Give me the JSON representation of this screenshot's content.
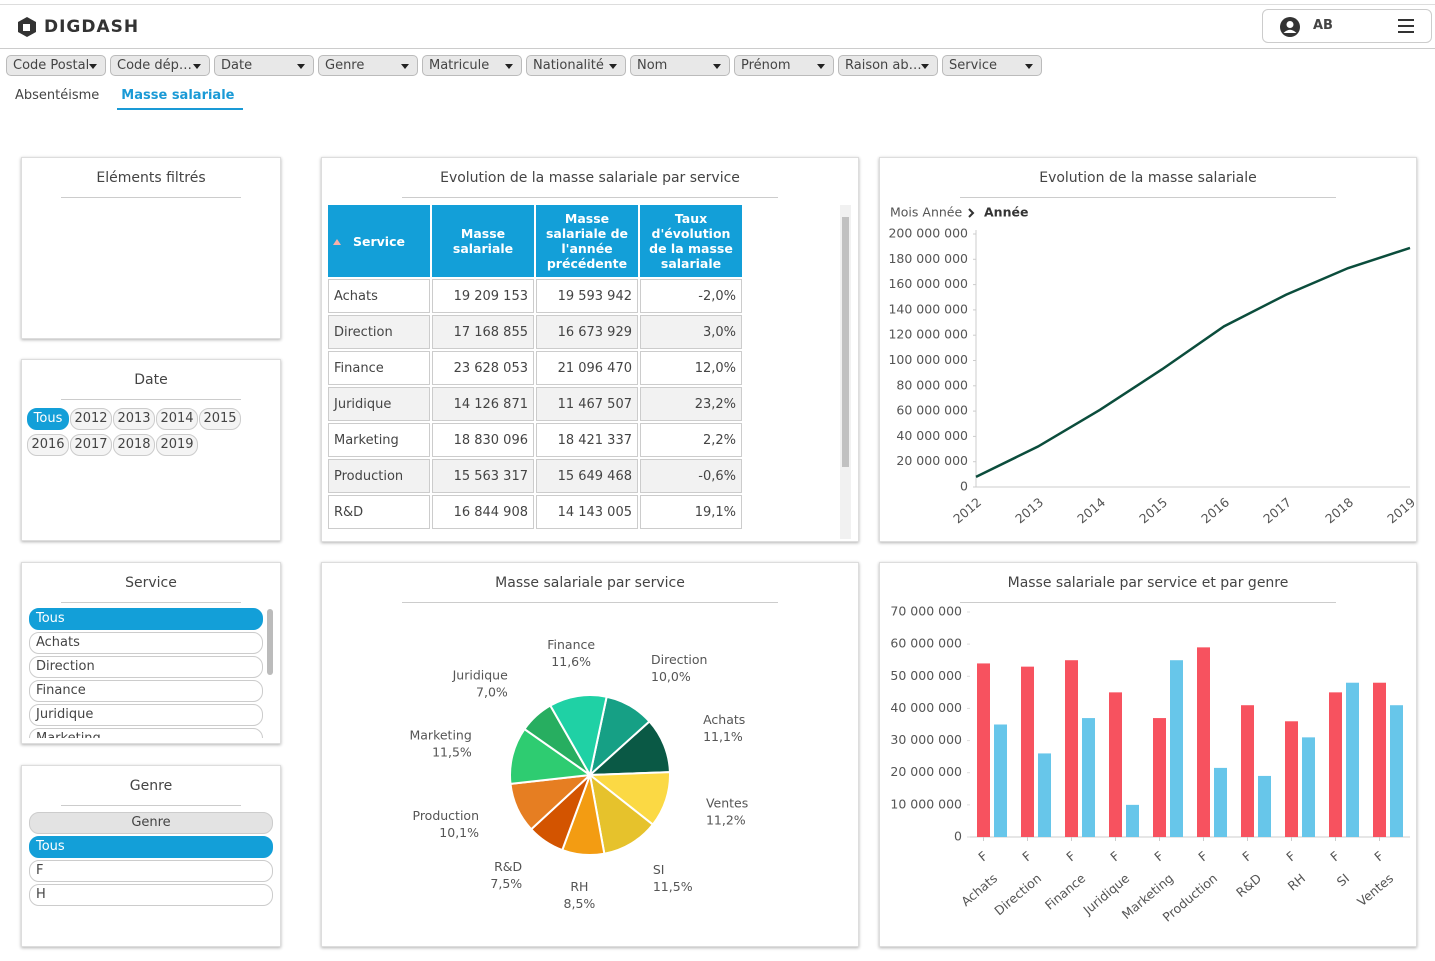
{
  "header": {
    "logo": "DIGDASH",
    "user": "AB"
  },
  "filters": [
    "Code Postal",
    "Code dép…",
    "Date",
    "Genre",
    "Matricule",
    "Nationalité",
    "Nom",
    "Prénom",
    "Raison ab…",
    "Service"
  ],
  "tabs": [
    "Absentéisme",
    "Masse salariale"
  ],
  "panels": {
    "filtered": {
      "title": "Eléments filtrés"
    },
    "date": {
      "title": "Date",
      "options": [
        "Tous",
        "2012",
        "2013",
        "2014",
        "2015",
        "2016",
        "2017",
        "2018",
        "2019"
      ]
    },
    "service": {
      "title": "Service",
      "options": [
        "Tous",
        "Achats",
        "Direction",
        "Finance",
        "Juridique",
        "Marketing"
      ]
    },
    "genre": {
      "title": "Genre",
      "header": "Genre",
      "options": [
        "Tous",
        "F",
        "H"
      ]
    }
  },
  "table": {
    "title": "Evolution de la masse salariale par service",
    "columns": [
      "Service",
      "Masse salariale",
      "Masse salariale de l'année précédente",
      "Taux d'évolution de la masse salariale"
    ],
    "rows": [
      [
        "Achats",
        "19 209 153",
        "19 593 942",
        "-2,0%"
      ],
      [
        "Direction",
        "17 168 855",
        "16 673 929",
        "3,0%"
      ],
      [
        "Finance",
        "23 628 053",
        "21 096 470",
        "12,0%"
      ],
      [
        "Juridique",
        "14 126 871",
        "11 467 507",
        "23,2%"
      ],
      [
        "Marketing",
        "18 830 096",
        "18 421 337",
        "2,2%"
      ],
      [
        "Production",
        "15 563 317",
        "15 649 468",
        "-0,6%"
      ],
      [
        "R&D",
        "16 844 908",
        "14 143 005",
        "19,1%"
      ]
    ]
  },
  "chart_data": [
    {
      "type": "line",
      "title": "Evolution de la masse salariale",
      "breadcrumb": [
        "Mois Année",
        "Année"
      ],
      "categories": [
        "2012",
        "2013",
        "2014",
        "2015",
        "2016",
        "2017",
        "2018",
        "2019"
      ],
      "series": [
        {
          "color": "#0b4d3c",
          "values": [
            8000000,
            32000000,
            61000000,
            93000000,
            127000000,
            152000000,
            173000000,
            189000000
          ]
        }
      ],
      "ylim": [
        0,
        200000000
      ],
      "yticks": [
        0,
        {
          "value": 20000000,
          "label": "20 000 000"
        },
        {
          "value": 40000000,
          "label": "40 000 000"
        },
        {
          "value": 60000000,
          "label": "60 000 000"
        },
        {
          "value": 80000000,
          "label": "80 000 000"
        },
        {
          "value": 100000000,
          "label": "100 000 000"
        },
        {
          "value": 120000000,
          "label": "120 000 000"
        },
        {
          "value": 140000000,
          "label": "140 000 000"
        },
        {
          "value": 160000000,
          "label": "160 000 000"
        },
        {
          "value": 180000000,
          "label": "180 000 000"
        },
        {
          "value": 200000000,
          "label": "200 000 000"
        }
      ]
    },
    {
      "type": "pie",
      "title": "Masse salariale par service",
      "categories": [
        "Direction",
        "Achats",
        "Ventes",
        "SI",
        "RH",
        "R&D",
        "Production",
        "Marketing",
        "Juridique",
        "Finance"
      ],
      "values": [
        10.0,
        11.1,
        11.2,
        11.5,
        8.5,
        7.5,
        10.1,
        11.5,
        7.0,
        11.6
      ],
      "value_labels": [
        "10,0%",
        "11,1%",
        "11,2%",
        "11,5%",
        "8,5%",
        "7,5%",
        "10,1%",
        "11,5%",
        "7,0%",
        "11,6%"
      ],
      "colors": [
        "#16a085",
        "#0a5945",
        "#fbd944",
        "#e6c22c",
        "#f39c12",
        "#d35400",
        "#e67e22",
        "#2ecc71",
        "#27ae60",
        "#1fd1a5"
      ]
    },
    {
      "type": "bar",
      "title": "Masse salariale par service et par genre",
      "categories": [
        "Achats",
        "Direction",
        "Finance",
        "Juridique",
        "Marketing",
        "Production",
        "R&D",
        "RH",
        "SI",
        "Ventes"
      ],
      "subcategories": [
        "F",
        "F",
        "F",
        "F",
        "F",
        "F",
        "F",
        "F",
        "F",
        "F"
      ],
      "series": [
        {
          "color": "#f7525f",
          "values": [
            54000000,
            53000000,
            55000000,
            45000000,
            37000000,
            59000000,
            41000000,
            36000000,
            45000000,
            48000000
          ]
        },
        {
          "color": "#67c6ea",
          "values": [
            35000000,
            26000000,
            37000000,
            10000000,
            55000000,
            21500000,
            19000000,
            31000000,
            48000000,
            41000000
          ]
        }
      ],
      "ylim": [
        0,
        70000000
      ],
      "yticks": [
        0,
        {
          "value": 10000000,
          "label": "10 000 000"
        },
        {
          "value": 20000000,
          "label": "20 000 000"
        },
        {
          "value": 30000000,
          "label": "30 000 000"
        },
        {
          "value": 40000000,
          "label": "40 000 000"
        },
        {
          "value": 50000000,
          "label": "50 000 000"
        },
        {
          "value": 60000000,
          "label": "60 000 000"
        },
        {
          "value": 70000000,
          "label": "70 000 000"
        }
      ]
    }
  ]
}
